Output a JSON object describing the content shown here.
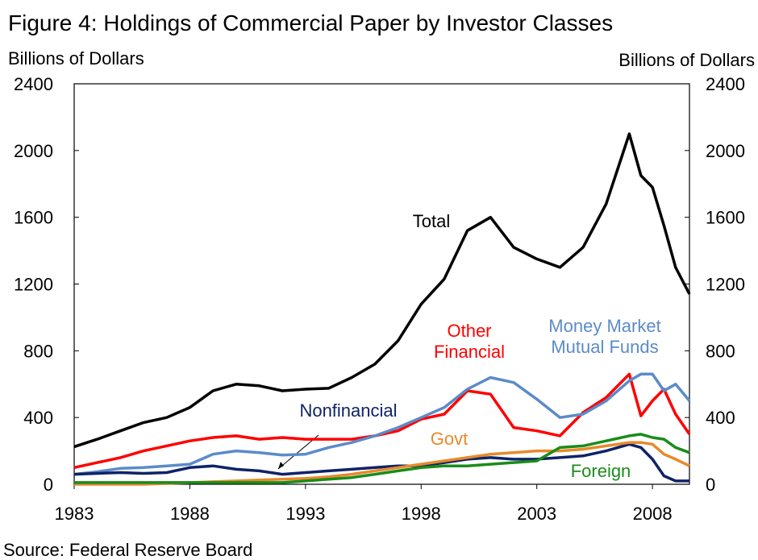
{
  "chart_data": {
    "type": "line",
    "title": "Figure 4: Holdings of Commercial Paper by Investor Classes",
    "y_label": "Billions of Dollars",
    "y2_label": "Billions of Dollars",
    "source": "Source: Federal Reserve Board",
    "x": [
      1983,
      1984,
      1985,
      1986,
      1987,
      1988,
      1989,
      1990,
      1991,
      1992,
      1993,
      1994,
      1995,
      1996,
      1997,
      1998,
      1999,
      2000,
      2001,
      2002,
      2003,
      2004,
      2005,
      2006,
      2007,
      2007.5,
      2008,
      2008.5,
      2009,
      2009.6
    ],
    "xlim": [
      1983,
      2009.6
    ],
    "xticks": [
      1983,
      1988,
      1993,
      1998,
      2003,
      2008
    ],
    "ylim": [
      0,
      2400
    ],
    "yticks": [
      0,
      400,
      800,
      1200,
      1600,
      2000,
      2400
    ],
    "y2lim": [
      0,
      2400
    ],
    "y2ticks": [
      0,
      400,
      800,
      1200,
      1600,
      2000,
      2400
    ],
    "series": [
      {
        "name": "Total",
        "color": "#000000",
        "values": [
          225,
          270,
          320,
          370,
          400,
          460,
          560,
          600,
          590,
          560,
          570,
          575,
          640,
          720,
          860,
          1080,
          1230,
          1520,
          1600,
          1420,
          1350,
          1300,
          1420,
          1680,
          2100,
          1850,
          1780,
          1550,
          1300,
          1140
        ]
      },
      {
        "name": "Other Financial",
        "color": "#ff0000",
        "values": [
          100,
          130,
          160,
          200,
          230,
          260,
          280,
          290,
          270,
          280,
          270,
          270,
          270,
          290,
          320,
          390,
          420,
          560,
          540,
          340,
          320,
          290,
          430,
          520,
          660,
          410,
          500,
          570,
          420,
          300
        ]
      },
      {
        "name": "Money Market Mutual Funds",
        "color": "#5b8bc9",
        "values": [
          60,
          75,
          95,
          100,
          110,
          120,
          180,
          200,
          190,
          175,
          180,
          220,
          250,
          290,
          340,
          400,
          460,
          570,
          640,
          610,
          510,
          400,
          420,
          500,
          620,
          660,
          660,
          560,
          600,
          500
        ]
      },
      {
        "name": "Nonfinancial",
        "color": "#0f2366",
        "values": [
          60,
          65,
          70,
          65,
          70,
          100,
          110,
          90,
          80,
          60,
          70,
          80,
          90,
          100,
          110,
          110,
          130,
          150,
          160,
          150,
          150,
          160,
          170,
          200,
          240,
          220,
          150,
          50,
          20,
          20
        ]
      },
      {
        "name": "Govt",
        "color": "#e8892c",
        "values": [
          0,
          0,
          0,
          0,
          5,
          10,
          15,
          20,
          25,
          30,
          35,
          45,
          60,
          80,
          100,
          120,
          140,
          160,
          180,
          190,
          200,
          200,
          210,
          230,
          250,
          250,
          240,
          180,
          150,
          110
        ]
      },
      {
        "name": "Foreign",
        "color": "#1a8c1a",
        "values": [
          10,
          10,
          10,
          10,
          10,
          10,
          10,
          10,
          10,
          10,
          20,
          30,
          40,
          60,
          80,
          100,
          110,
          110,
          120,
          130,
          140,
          220,
          230,
          260,
          290,
          300,
          280,
          270,
          220,
          190
        ]
      }
    ]
  }
}
